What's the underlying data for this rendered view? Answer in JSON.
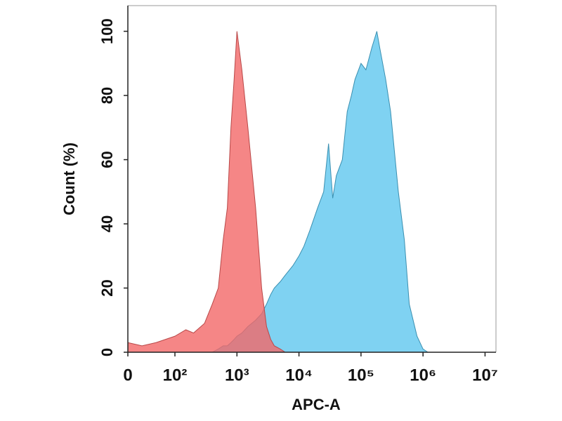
{
  "chart_data": {
    "type": "area",
    "xlabel": "APC-A",
    "ylabel": "Count  (%)",
    "xscale": "biexponential",
    "x": [
      0,
      30,
      60,
      100,
      150,
      200,
      300,
      400,
      500,
      600,
      700,
      800,
      900,
      1000,
      1200,
      1500,
      2000,
      2500,
      3000,
      3500,
      4000,
      5000,
      6000,
      8000,
      10000,
      12000,
      15000,
      20000,
      25000,
      30000,
      35000,
      40000,
      50000,
      60000,
      70000,
      80000,
      100000,
      120000,
      150000,
      180000,
      200000,
      250000,
      300000,
      400000,
      500000,
      600000,
      800000,
      1000000,
      1200000,
      1500000,
      2000000,
      10000000
    ],
    "series": [
      {
        "color": "#7fd2f2",
        "values": [
          0,
          0,
          0,
          0,
          0,
          0,
          0,
          0,
          1,
          2,
          2,
          3,
          4,
          5,
          6,
          8,
          10,
          12,
          15,
          18,
          20,
          22,
          24,
          27,
          30,
          33,
          38,
          45,
          50,
          65,
          48,
          55,
          60,
          75,
          80,
          85,
          90,
          88,
          95,
          100,
          95,
          85,
          75,
          50,
          35,
          15,
          5,
          1,
          0,
          0,
          0,
          0
        ]
      },
      {
        "color": "#f26868",
        "values": [
          3,
          2,
          3,
          5,
          7,
          6,
          9,
          15,
          20,
          35,
          45,
          70,
          85,
          100,
          88,
          70,
          45,
          20,
          8,
          4,
          2,
          1,
          0,
          0,
          0,
          0,
          0,
          0,
          0,
          0,
          0,
          0,
          0,
          0,
          0,
          0,
          0,
          0,
          0,
          0,
          0,
          0,
          0,
          0,
          0,
          0,
          0,
          0,
          0,
          0,
          0,
          0
        ]
      }
    ],
    "xlim": [
      0,
      15000000
    ],
    "ylim": [
      0,
      108
    ],
    "xticks": [
      0,
      {
        "value": 100,
        "label": "10²"
      },
      {
        "value": 1000,
        "label": "10³"
      },
      {
        "value": 10000,
        "label": "10⁴"
      },
      {
        "value": 100000,
        "label": "10⁵"
      },
      {
        "value": 1000000,
        "label": "10⁶"
      },
      {
        "value": 10000000,
        "label": "10⁷"
      }
    ],
    "yticks": [
      0,
      20,
      40,
      60,
      80,
      100
    ]
  }
}
